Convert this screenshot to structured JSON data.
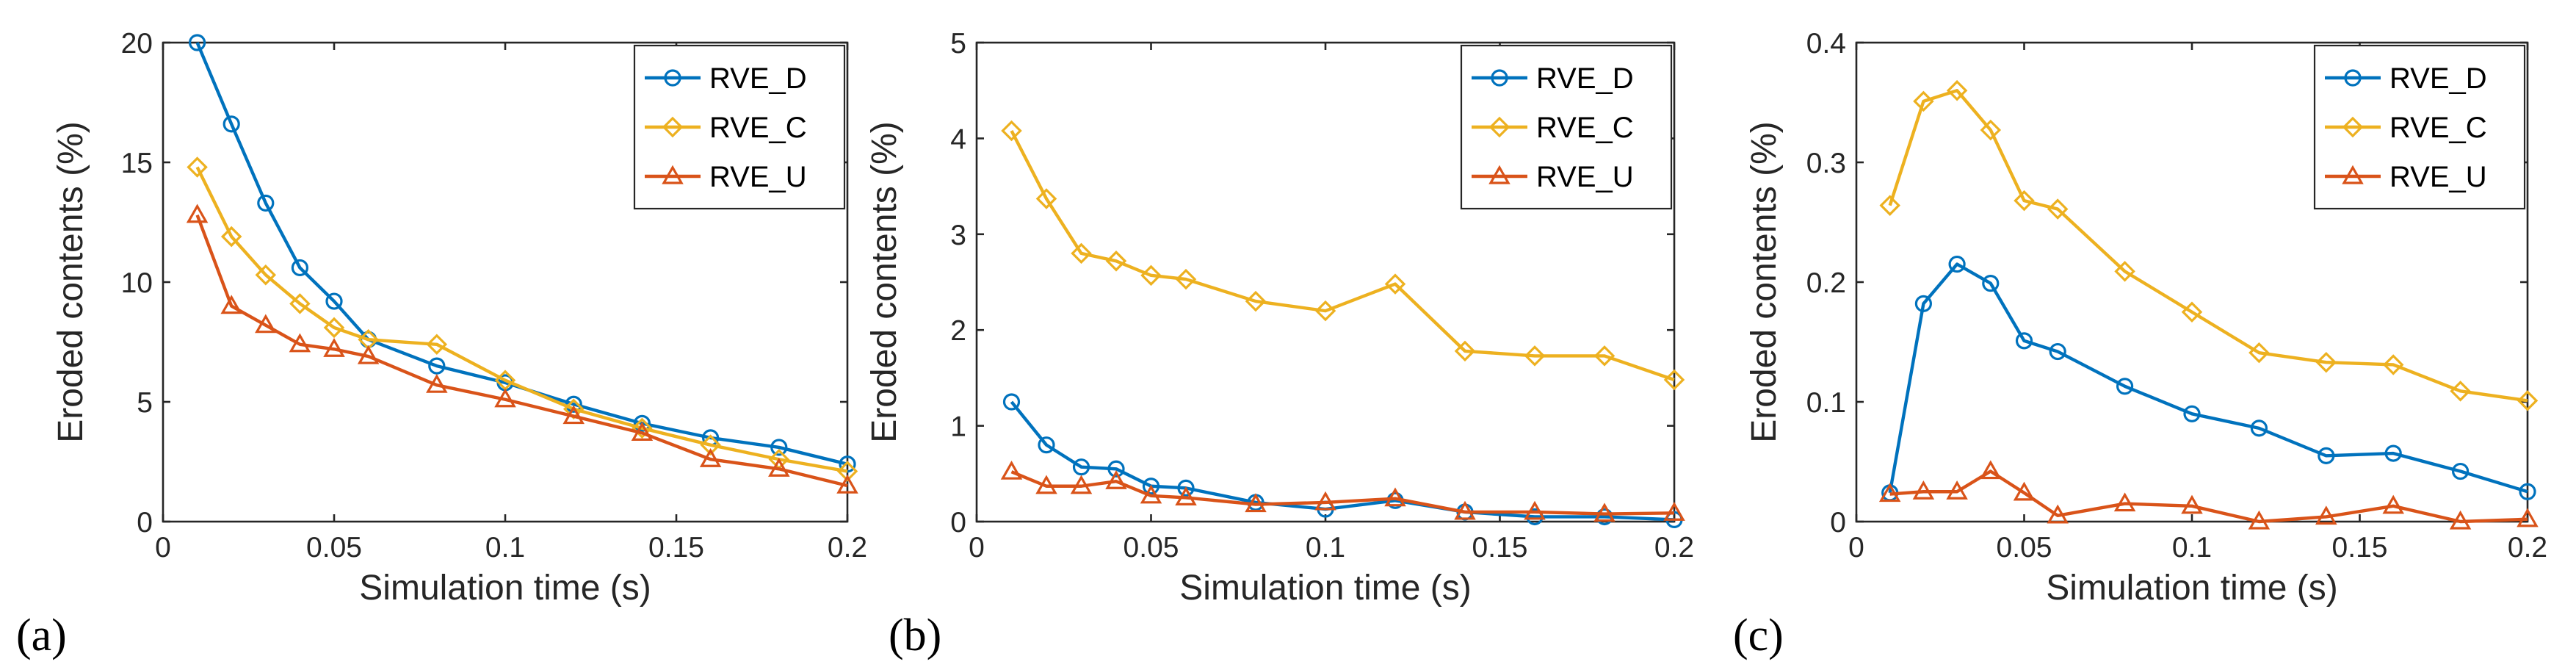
{
  "chart_data": [
    {
      "type": "line",
      "panel_label": "(a)",
      "xlabel": "Simulation time (s)",
      "ylabel": "Eroded contents (%)",
      "xlim": [
        0,
        0.2
      ],
      "ylim": [
        0,
        20
      ],
      "xticks": [
        0,
        0.05,
        0.1,
        0.15,
        0.2
      ],
      "xtick_labels": [
        "0",
        "0.05",
        "0.1",
        "0.15",
        "0.2"
      ],
      "yticks": [
        0,
        5,
        10,
        15,
        20
      ],
      "ytick_labels": [
        "0",
        "5",
        "10",
        "15",
        "20"
      ],
      "legend_position": "top-right",
      "series": [
        {
          "name": "RVE_D",
          "color": "#0072BD",
          "marker": "circle",
          "x": [
            0.01,
            0.02,
            0.03,
            0.04,
            0.05,
            0.06,
            0.08,
            0.1,
            0.12,
            0.14,
            0.16,
            0.18,
            0.2
          ],
          "y": [
            20.0,
            16.6,
            13.3,
            10.6,
            9.2,
            7.6,
            6.5,
            5.8,
            4.9,
            4.1,
            3.5,
            3.1,
            2.4
          ]
        },
        {
          "name": "RVE_C",
          "color": "#EDB120",
          "marker": "diamond",
          "x": [
            0.01,
            0.02,
            0.03,
            0.04,
            0.05,
            0.06,
            0.08,
            0.1,
            0.12,
            0.14,
            0.16,
            0.18,
            0.2
          ],
          "y": [
            14.8,
            11.9,
            10.3,
            9.1,
            8.1,
            7.6,
            7.4,
            5.9,
            4.7,
            3.9,
            3.2,
            2.6,
            2.1
          ]
        },
        {
          "name": "RVE_U",
          "color": "#D95319",
          "marker": "triangle",
          "x": [
            0.01,
            0.02,
            0.03,
            0.04,
            0.05,
            0.06,
            0.08,
            0.1,
            0.12,
            0.14,
            0.16,
            0.18,
            0.2
          ],
          "y": [
            12.8,
            9.0,
            8.2,
            7.4,
            7.2,
            6.9,
            5.7,
            5.1,
            4.4,
            3.7,
            2.6,
            2.2,
            1.5
          ]
        }
      ]
    },
    {
      "type": "line",
      "panel_label": "(b)",
      "xlabel": "Simulation time (s)",
      "ylabel": "Eroded contents (%)",
      "xlim": [
        0,
        0.2
      ],
      "ylim": [
        0,
        5
      ],
      "xticks": [
        0,
        0.05,
        0.1,
        0.15,
        0.2
      ],
      "xtick_labels": [
        "0",
        "0.05",
        "0.1",
        "0.15",
        "0.2"
      ],
      "yticks": [
        0,
        1,
        2,
        3,
        4,
        5
      ],
      "ytick_labels": [
        "0",
        "1",
        "2",
        "3",
        "4",
        "5"
      ],
      "legend_position": "top-right",
      "series": [
        {
          "name": "RVE_D",
          "color": "#0072BD",
          "marker": "circle",
          "x": [
            0.01,
            0.02,
            0.03,
            0.04,
            0.05,
            0.06,
            0.08,
            0.1,
            0.12,
            0.14,
            0.16,
            0.18,
            0.2
          ],
          "y": [
            1.25,
            0.8,
            0.57,
            0.55,
            0.37,
            0.35,
            0.2,
            0.13,
            0.22,
            0.1,
            0.05,
            0.05,
            0.02
          ]
        },
        {
          "name": "RVE_C",
          "color": "#EDB120",
          "marker": "diamond",
          "x": [
            0.01,
            0.02,
            0.03,
            0.04,
            0.05,
            0.06,
            0.08,
            0.1,
            0.12,
            0.14,
            0.16,
            0.18,
            0.2
          ],
          "y": [
            4.08,
            3.37,
            2.8,
            2.72,
            2.57,
            2.53,
            2.3,
            2.2,
            2.48,
            1.78,
            1.73,
            1.73,
            1.48
          ]
        },
        {
          "name": "RVE_U",
          "color": "#D95319",
          "marker": "triangle",
          "x": [
            0.01,
            0.02,
            0.03,
            0.04,
            0.05,
            0.06,
            0.08,
            0.1,
            0.12,
            0.14,
            0.16,
            0.18,
            0.2
          ],
          "y": [
            0.52,
            0.37,
            0.37,
            0.42,
            0.27,
            0.25,
            0.18,
            0.2,
            0.24,
            0.1,
            0.1,
            0.08,
            0.09
          ]
        }
      ]
    },
    {
      "type": "line",
      "panel_label": "(c)",
      "xlabel": "Simulation time (s)",
      "ylabel": "Eroded contents (%)",
      "xlim": [
        0,
        0.2
      ],
      "ylim": [
        0,
        0.4
      ],
      "xticks": [
        0,
        0.05,
        0.1,
        0.15,
        0.2
      ],
      "xtick_labels": [
        "0",
        "0.05",
        "0.1",
        "0.15",
        "0.2"
      ],
      "yticks": [
        0,
        0.1,
        0.2,
        0.3,
        0.4
      ],
      "ytick_labels": [
        "0",
        "0.1",
        "0.2",
        "0.3",
        "0.4"
      ],
      "legend_position": "top-right",
      "series": [
        {
          "name": "RVE_D",
          "color": "#0072BD",
          "marker": "circle",
          "x": [
            0.01,
            0.02,
            0.03,
            0.04,
            0.05,
            0.06,
            0.08,
            0.1,
            0.12,
            0.14,
            0.16,
            0.18,
            0.2
          ],
          "y": [
            0.024,
            0.182,
            0.215,
            0.199,
            0.151,
            0.142,
            0.113,
            0.09,
            0.078,
            0.055,
            0.057,
            0.042,
            0.025
          ]
        },
        {
          "name": "RVE_C",
          "color": "#EDB120",
          "marker": "diamond",
          "x": [
            0.01,
            0.02,
            0.03,
            0.04,
            0.05,
            0.06,
            0.08,
            0.1,
            0.12,
            0.14,
            0.16,
            0.18,
            0.2
          ],
          "y": [
            0.264,
            0.351,
            0.36,
            0.327,
            0.268,
            0.261,
            0.209,
            0.175,
            0.141,
            0.133,
            0.131,
            0.109,
            0.101
          ]
        },
        {
          "name": "RVE_U",
          "color": "#D95319",
          "marker": "triangle",
          "x": [
            0.01,
            0.02,
            0.03,
            0.04,
            0.05,
            0.06,
            0.08,
            0.1,
            0.12,
            0.14,
            0.16,
            0.18,
            0.2
          ],
          "y": [
            0.023,
            0.025,
            0.025,
            0.042,
            0.024,
            0.005,
            0.015,
            0.013,
            0.0,
            0.004,
            0.013,
            0.0,
            0.002
          ]
        }
      ]
    }
  ]
}
